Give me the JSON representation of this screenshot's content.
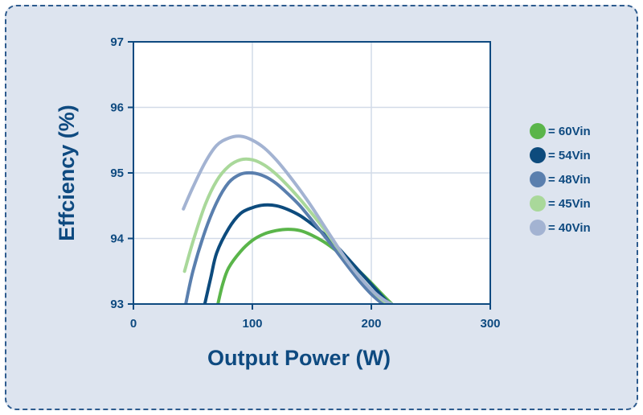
{
  "chart_data": {
    "type": "line",
    "xlabel": "Output Power (W)",
    "ylabel": "Effciency (%)",
    "xlim": [
      0,
      300
    ],
    "ylim": [
      93,
      97
    ],
    "x_ticks": [
      "0",
      "100",
      "200",
      "300"
    ],
    "y_ticks": [
      "93",
      "94",
      "95",
      "96",
      "97"
    ],
    "grid": true,
    "legend_position": "right",
    "series": [
      {
        "name": "= 60Vin",
        "color": "#5ab54a",
        "points": [
          [
            71,
            93.0
          ],
          [
            75,
            93.3
          ],
          [
            80,
            93.55
          ],
          [
            90,
            93.8
          ],
          [
            100,
            93.97
          ],
          [
            110,
            94.07
          ],
          [
            120,
            94.12
          ],
          [
            130,
            94.14
          ],
          [
            140,
            94.12
          ],
          [
            150,
            94.05
          ],
          [
            160,
            93.95
          ],
          [
            170,
            93.82
          ],
          [
            180,
            93.67
          ],
          [
            190,
            93.5
          ],
          [
            200,
            93.32
          ],
          [
            210,
            93.13
          ],
          [
            220,
            92.95
          ]
        ]
      },
      {
        "name": "= 54Vin",
        "color": "#0d4b7d",
        "points": [
          [
            60,
            93.0
          ],
          [
            65,
            93.4
          ],
          [
            70,
            93.78
          ],
          [
            80,
            94.15
          ],
          [
            90,
            94.38
          ],
          [
            100,
            94.47
          ],
          [
            110,
            94.51
          ],
          [
            120,
            94.5
          ],
          [
            130,
            94.44
          ],
          [
            140,
            94.35
          ],
          [
            150,
            94.22
          ],
          [
            160,
            94.07
          ],
          [
            170,
            93.9
          ],
          [
            180,
            93.7
          ],
          [
            190,
            93.5
          ],
          [
            200,
            93.3
          ],
          [
            210,
            93.1
          ],
          [
            218,
            92.95
          ]
        ]
      },
      {
        "name": "= 48Vin",
        "color": "#5a7fae",
        "points": [
          [
            44,
            93.0
          ],
          [
            50,
            93.5
          ],
          [
            60,
            94.1
          ],
          [
            70,
            94.55
          ],
          [
            80,
            94.85
          ],
          [
            90,
            94.98
          ],
          [
            100,
            95.0
          ],
          [
            110,
            94.95
          ],
          [
            120,
            94.84
          ],
          [
            130,
            94.68
          ],
          [
            140,
            94.5
          ],
          [
            150,
            94.28
          ],
          [
            160,
            94.05
          ],
          [
            170,
            93.82
          ],
          [
            180,
            93.58
          ],
          [
            190,
            93.35
          ],
          [
            200,
            93.15
          ],
          [
            210,
            93.0
          ],
          [
            220,
            92.95
          ]
        ]
      },
      {
        "name": "= 45Vin",
        "color": "#a9d89a",
        "points": [
          [
            43,
            93.5
          ],
          [
            50,
            93.95
          ],
          [
            60,
            94.5
          ],
          [
            70,
            94.88
          ],
          [
            80,
            95.1
          ],
          [
            90,
            95.2
          ],
          [
            100,
            95.2
          ],
          [
            110,
            95.12
          ],
          [
            120,
            94.98
          ],
          [
            130,
            94.8
          ],
          [
            140,
            94.6
          ],
          [
            150,
            94.38
          ],
          [
            160,
            94.15
          ],
          [
            170,
            93.9
          ],
          [
            180,
            93.65
          ],
          [
            190,
            93.42
          ],
          [
            200,
            93.22
          ],
          [
            210,
            93.05
          ],
          [
            222,
            92.95
          ]
        ]
      },
      {
        "name": "= 40Vin",
        "color": "#a3b3d2",
        "points": [
          [
            42,
            94.45
          ],
          [
            50,
            94.78
          ],
          [
            60,
            95.15
          ],
          [
            70,
            95.42
          ],
          [
            80,
            95.53
          ],
          [
            90,
            95.56
          ],
          [
            100,
            95.5
          ],
          [
            110,
            95.38
          ],
          [
            120,
            95.2
          ],
          [
            130,
            94.98
          ],
          [
            140,
            94.74
          ],
          [
            150,
            94.48
          ],
          [
            160,
            94.2
          ],
          [
            170,
            93.92
          ],
          [
            180,
            93.65
          ],
          [
            190,
            93.42
          ],
          [
            200,
            93.22
          ],
          [
            210,
            93.07
          ],
          [
            222,
            92.95
          ]
        ]
      }
    ]
  }
}
